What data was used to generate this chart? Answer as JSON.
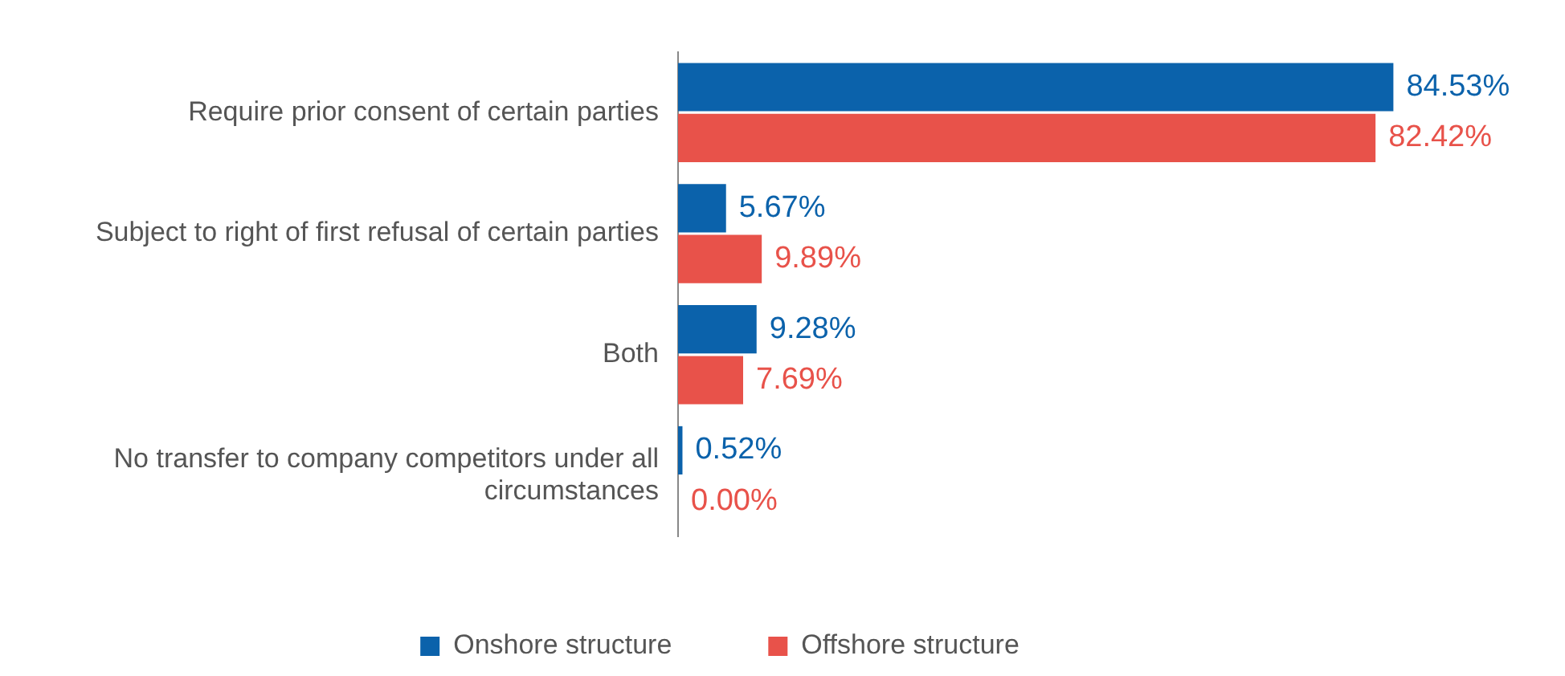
{
  "chart_data": {
    "type": "bar",
    "orientation": "horizontal",
    "categories": [
      "Require prior consent of certain parties",
      "Subject to right of first refusal of certain parties",
      "Both",
      "No transfer to company competitors under all circumstances"
    ],
    "series": [
      {
        "name": "Onshore structure",
        "color": "#0b62ab",
        "values": [
          84.53,
          5.67,
          9.28,
          0.52
        ],
        "value_labels": [
          "84.53%",
          "5.67%",
          "9.28%",
          "0.52%"
        ]
      },
      {
        "name": "Offshore structure",
        "color": "#e8524a",
        "values": [
          82.42,
          9.89,
          7.69,
          0.0
        ],
        "value_labels": [
          "82.42%",
          "9.89%",
          "7.69%",
          "0.00%"
        ]
      }
    ],
    "legend": "bottom"
  }
}
